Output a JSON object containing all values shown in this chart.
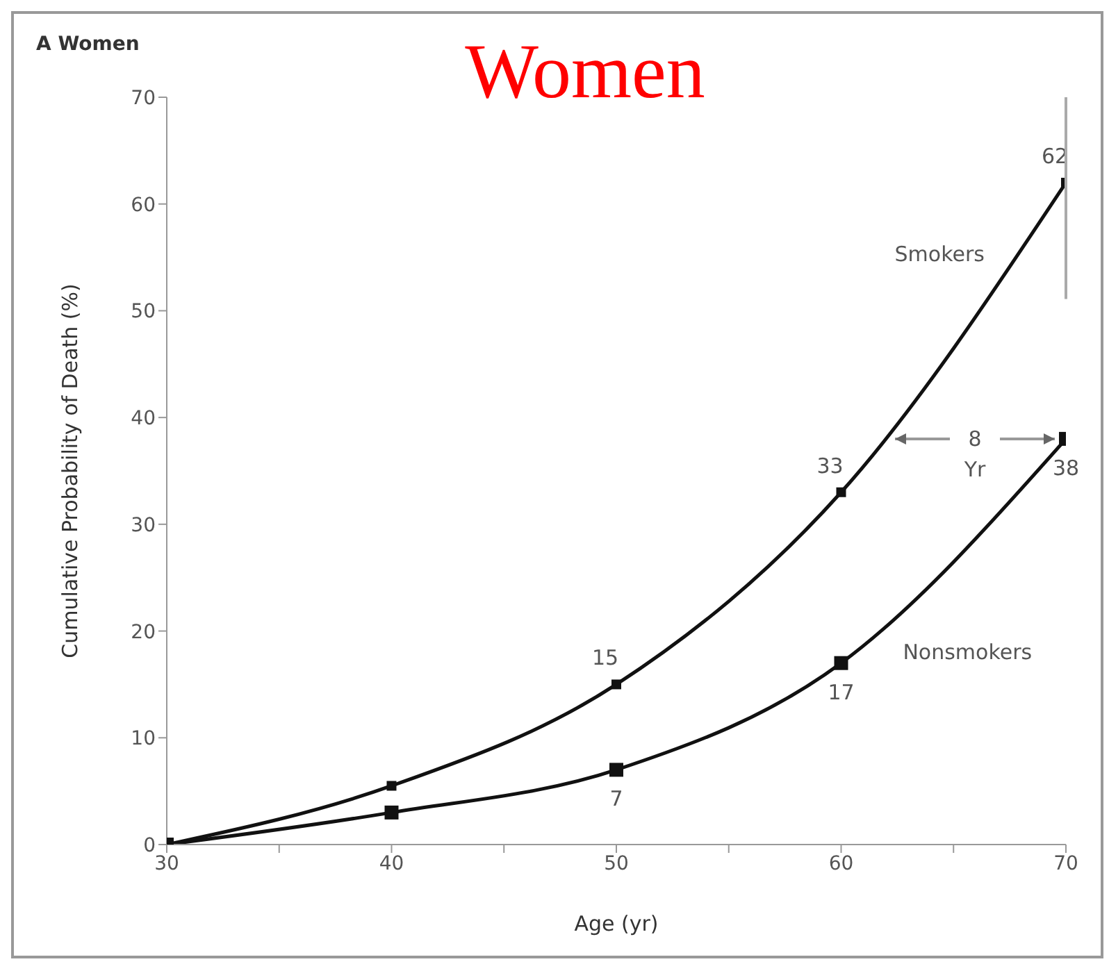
{
  "chart_data": {
    "type": "line",
    "title": "Women",
    "xlabel": "Age (yr)",
    "ylabel": "Cumulative Probability of Death (%)",
    "x": [
      30,
      40,
      50,
      60,
      70
    ],
    "series": [
      {
        "name": "Smokers",
        "color": "#111111",
        "values": [
          0,
          5.5,
          15,
          33,
          62
        ],
        "value_labels": [
          null,
          null,
          "15",
          "33",
          "62"
        ]
      },
      {
        "name": "Nonsmokers",
        "color": "#111111",
        "values": [
          0,
          3,
          7,
          17,
          38
        ],
        "value_labels": [
          null,
          null,
          "7",
          "17",
          "38"
        ]
      }
    ],
    "xlim": [
      30,
      70
    ],
    "xticks": [
      30,
      {
        "value": 35,
        "label": null
      },
      40,
      {
        "value": 45,
        "label": null
      },
      50,
      {
        "value": 55,
        "label": null
      },
      60,
      {
        "value": 65,
        "label": null
      },
      70
    ],
    "ylim": [
      0,
      70
    ],
    "yticks": [
      0,
      10,
      20,
      30,
      40,
      50,
      60,
      70
    ],
    "marker": "square",
    "line_style": "solid",
    "grid": false,
    "annotations": [
      "A Women",
      {
        "text": "8 Yr",
        "x": 70,
        "y": 38
      }
    ]
  }
}
